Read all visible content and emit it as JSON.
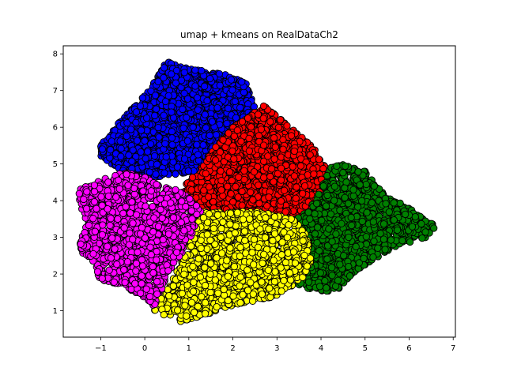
{
  "chart_data": {
    "type": "scatter",
    "title": "umap + kmeans on RealDataCh2",
    "xlabel": "",
    "ylabel": "",
    "xlim": [
      -1.85,
      7.05
    ],
    "ylim": [
      0.28,
      8.22
    ],
    "x_ticks": [
      -1,
      0,
      1,
      2,
      3,
      4,
      5,
      6,
      7
    ],
    "y_ticks": [
      1,
      2,
      3,
      4,
      5,
      6,
      7,
      8
    ],
    "x_tick_labels": [
      "−1",
      "0",
      "1",
      "2",
      "3",
      "4",
      "5",
      "6",
      "7"
    ],
    "y_tick_labels": [
      "1",
      "2",
      "3",
      "4",
      "5",
      "6",
      "7",
      "8"
    ],
    "grid": false,
    "legend": "none",
    "marker_edge_color": "#000000",
    "series": [
      {
        "color": "#0000ff",
        "region": [
          [
            -1.0,
            5.5
          ],
          [
            -0.6,
            6.1
          ],
          [
            0.1,
            7.0
          ],
          [
            0.5,
            7.8
          ],
          [
            1.0,
            7.6
          ],
          [
            1.7,
            7.5
          ],
          [
            2.3,
            7.2
          ],
          [
            2.5,
            6.5
          ],
          [
            2.0,
            6.0
          ],
          [
            1.2,
            4.8
          ],
          [
            0.0,
            4.6
          ],
          [
            -0.5,
            4.8
          ],
          [
            -1.0,
            5.2
          ]
        ],
        "count": 2400
      },
      {
        "color": "#ff0000",
        "region": [
          [
            0.9,
            4.4
          ],
          [
            1.2,
            4.8
          ],
          [
            1.7,
            5.6
          ],
          [
            2.0,
            6.0
          ],
          [
            2.7,
            6.6
          ],
          [
            3.2,
            6.1
          ],
          [
            3.8,
            5.5
          ],
          [
            4.1,
            4.9
          ],
          [
            4.0,
            4.3
          ],
          [
            3.7,
            3.7
          ],
          [
            3.4,
            3.5
          ],
          [
            2.6,
            3.7
          ],
          [
            1.4,
            3.7
          ],
          [
            1.1,
            3.9
          ],
          [
            0.9,
            4.2
          ]
        ],
        "count": 2200
      },
      {
        "color": "#008000",
        "region": [
          [
            3.4,
            3.5
          ],
          [
            3.7,
            3.7
          ],
          [
            4.0,
            4.3
          ],
          [
            4.2,
            4.9
          ],
          [
            4.5,
            5.0
          ],
          [
            5.0,
            4.8
          ],
          [
            5.5,
            4.1
          ],
          [
            6.2,
            3.7
          ],
          [
            6.6,
            3.3
          ],
          [
            6.4,
            3.0
          ],
          [
            5.8,
            2.8
          ],
          [
            5.2,
            2.4
          ],
          [
            4.7,
            2.0
          ],
          [
            4.4,
            1.6
          ],
          [
            4.0,
            1.5
          ],
          [
            3.4,
            1.7
          ],
          [
            3.6,
            2.1
          ],
          [
            3.8,
            2.6
          ],
          [
            3.5,
            3.2
          ]
        ],
        "count": 1500
      },
      {
        "color": "#ffff00",
        "region": [
          [
            1.3,
            3.7
          ],
          [
            2.6,
            3.7
          ],
          [
            3.4,
            3.5
          ],
          [
            3.7,
            3.0
          ],
          [
            3.8,
            2.4
          ],
          [
            3.6,
            1.9
          ],
          [
            3.0,
            1.4
          ],
          [
            2.2,
            1.2
          ],
          [
            1.4,
            0.9
          ],
          [
            0.8,
            0.7
          ],
          [
            0.2,
            1.0
          ],
          [
            0.7,
            2.0
          ],
          [
            1.0,
            2.9
          ]
        ],
        "count": 1700
      },
      {
        "color": "#ff00ff",
        "region": [
          [
            -1.5,
            4.3
          ],
          [
            -0.9,
            4.6
          ],
          [
            -0.4,
            4.8
          ],
          [
            0.1,
            4.6
          ],
          [
            0.9,
            4.2
          ],
          [
            1.3,
            3.7
          ],
          [
            1.0,
            2.9
          ],
          [
            0.6,
            2.1
          ],
          [
            0.2,
            1.1
          ],
          [
            -0.1,
            1.4
          ],
          [
            -0.5,
            1.7
          ],
          [
            -1.0,
            1.8
          ],
          [
            -1.2,
            2.4
          ],
          [
            -1.55,
            2.7
          ],
          [
            -1.3,
            3.4
          ],
          [
            -1.5,
            3.9
          ]
        ],
        "count": 1600
      }
    ]
  }
}
